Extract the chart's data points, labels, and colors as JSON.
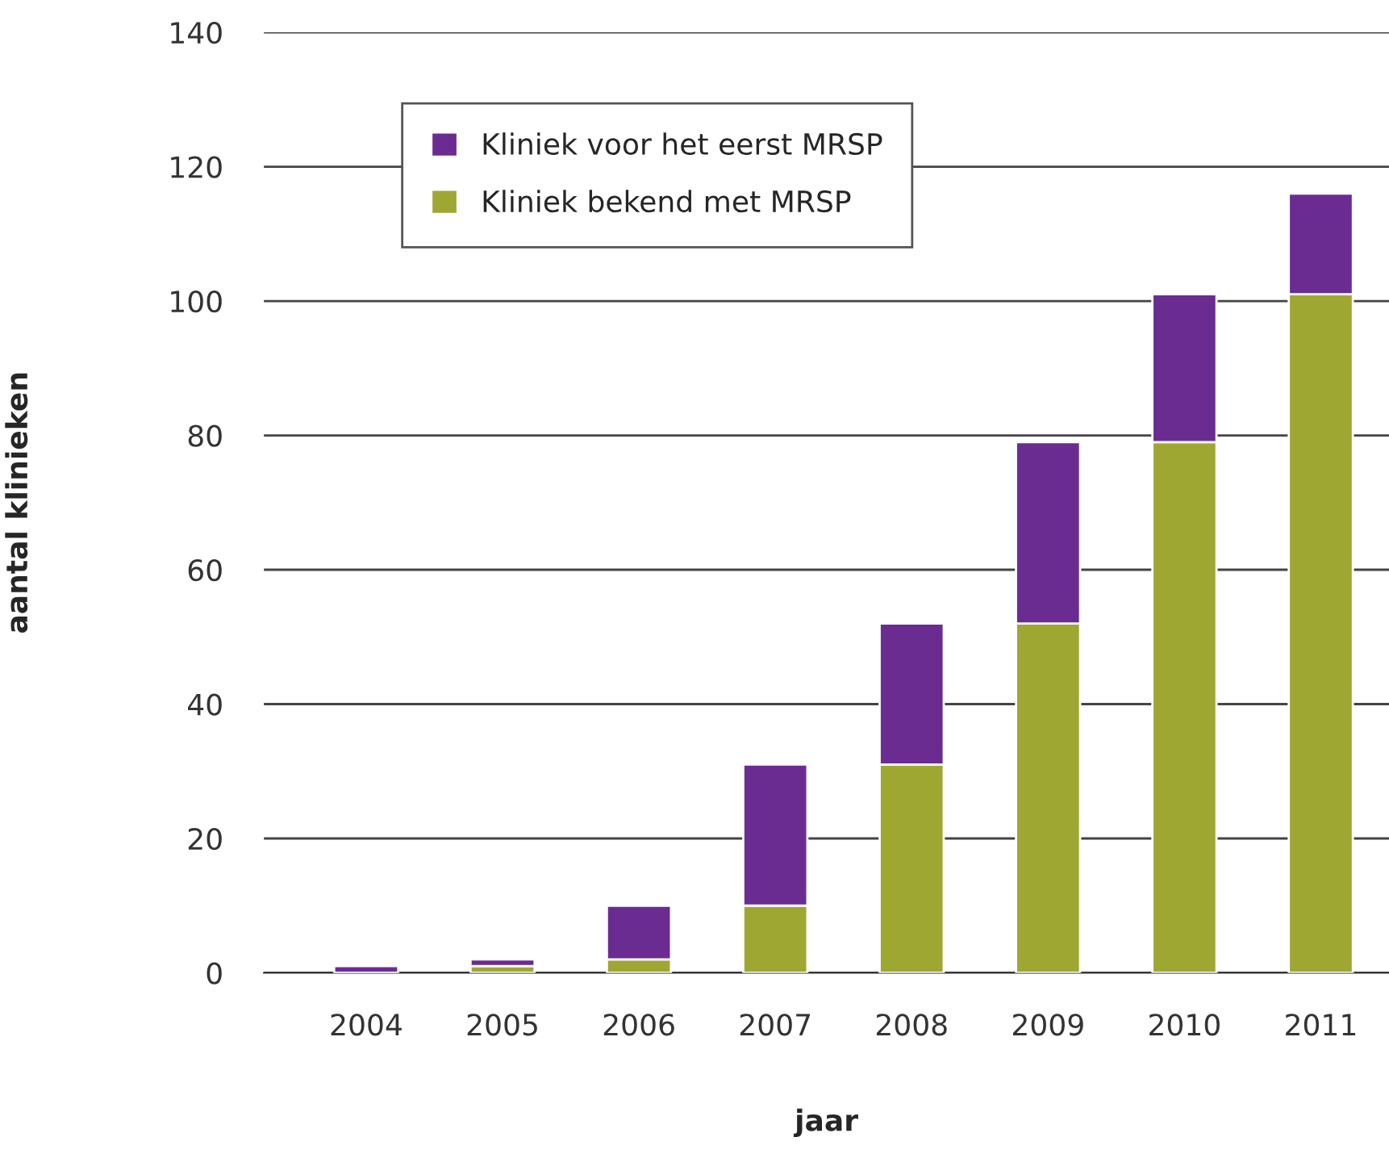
{
  "chart_data": {
    "type": "bar",
    "stacked": true,
    "xlabel": "jaar",
    "ylabel": "aantal klinieken",
    "categories": [
      "2004",
      "2005",
      "2006",
      "2007",
      "2008",
      "2009",
      "2010",
      "2011"
    ],
    "series": [
      {
        "name": "Kliniek bekend met MRSP",
        "color": "#9fa733",
        "values": [
          0,
          1,
          2,
          10,
          31,
          52,
          79,
          101
        ]
      },
      {
        "name": "Kliniek voor het eerst MRSP",
        "color": "#6b2c91",
        "values": [
          1,
          1,
          8,
          21,
          21,
          27,
          22,
          15
        ]
      }
    ],
    "ylim": [
      0,
      140
    ],
    "yticks": [
      0,
      20,
      40,
      60,
      80,
      100,
      120,
      140
    ],
    "grid": "y",
    "legend": "top left"
  }
}
